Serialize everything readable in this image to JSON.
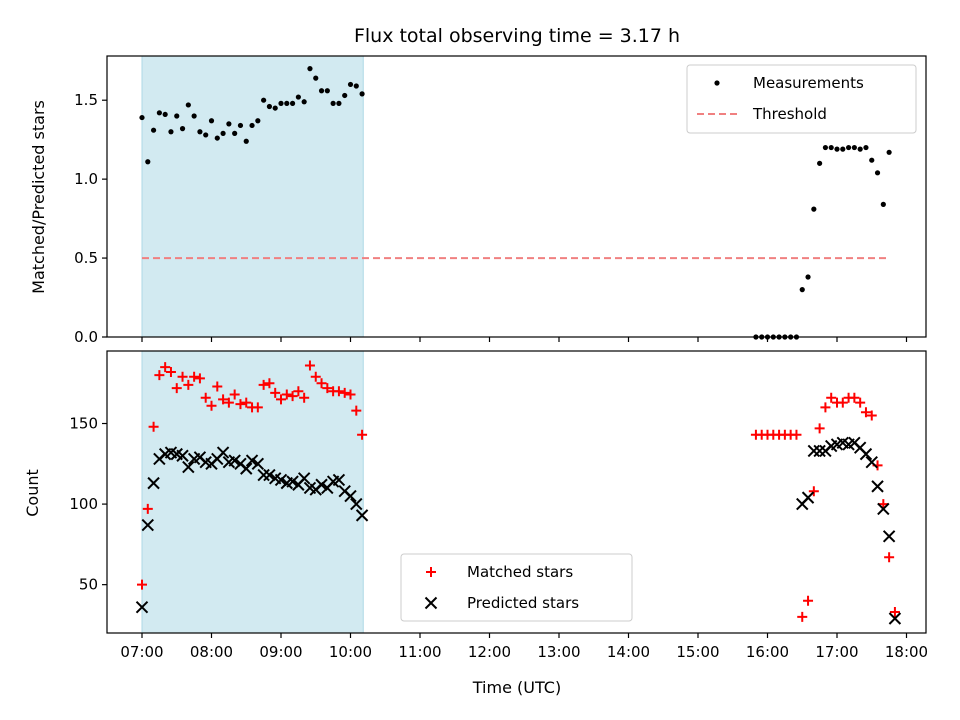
{
  "chart_data": [
    {
      "type": "scatter",
      "title": "Flux total observing time = 3.17 h",
      "xlabel": "",
      "ylabel": "Matched/Predicted stars",
      "ylim": [
        0,
        1.78
      ],
      "xlim": [
        "06:30",
        "18:15"
      ],
      "yticks": [
        0.0,
        0.5,
        1.0,
        1.5
      ],
      "ytick_labels": [
        "0.0",
        "0.5",
        "1.0",
        "1.5"
      ],
      "legend_position": "top-right",
      "observing_window": {
        "start": "07:00",
        "end": "10:11",
        "color": "#add8e6"
      },
      "series": [
        {
          "name": "Measurements",
          "marker": "dot",
          "color": "#000000",
          "points": [
            [
              "07:00",
              1.39
            ],
            [
              "07:05",
              1.11
            ],
            [
              "07:10",
              1.31
            ],
            [
              "07:15",
              1.42
            ],
            [
              "07:20",
              1.41
            ],
            [
              "07:25",
              1.3
            ],
            [
              "07:30",
              1.4
            ],
            [
              "07:35",
              1.32
            ],
            [
              "07:40",
              1.47
            ],
            [
              "07:45",
              1.4
            ],
            [
              "07:50",
              1.3
            ],
            [
              "07:55",
              1.28
            ],
            [
              "08:00",
              1.37
            ],
            [
              "08:05",
              1.26
            ],
            [
              "08:10",
              1.29
            ],
            [
              "08:15",
              1.35
            ],
            [
              "08:20",
              1.29
            ],
            [
              "08:25",
              1.34
            ],
            [
              "08:30",
              1.24
            ],
            [
              "08:35",
              1.34
            ],
            [
              "08:40",
              1.37
            ],
            [
              "08:45",
              1.5
            ],
            [
              "08:50",
              1.46
            ],
            [
              "08:55",
              1.45
            ],
            [
              "09:00",
              1.48
            ],
            [
              "09:05",
              1.48
            ],
            [
              "09:10",
              1.48
            ],
            [
              "09:15",
              1.52
            ],
            [
              "09:20",
              1.49
            ],
            [
              "09:25",
              1.7
            ],
            [
              "09:30",
              1.64
            ],
            [
              "09:35",
              1.56
            ],
            [
              "09:40",
              1.56
            ],
            [
              "09:45",
              1.48
            ],
            [
              "09:50",
              1.48
            ],
            [
              "09:55",
              1.53
            ],
            [
              "10:00",
              1.6
            ],
            [
              "10:05",
              1.59
            ],
            [
              "10:10",
              1.54
            ],
            [
              "15:50",
              0.0
            ],
            [
              "15:55",
              0.0
            ],
            [
              "16:00",
              0.0
            ],
            [
              "16:05",
              0.0
            ],
            [
              "16:10",
              0.0
            ],
            [
              "16:15",
              0.0
            ],
            [
              "16:20",
              0.0
            ],
            [
              "16:25",
              0.0
            ],
            [
              "16:30",
              0.3
            ],
            [
              "16:35",
              0.38
            ],
            [
              "16:40",
              0.81
            ],
            [
              "16:45",
              1.1
            ],
            [
              "16:50",
              1.2
            ],
            [
              "16:55",
              1.2
            ],
            [
              "17:00",
              1.19
            ],
            [
              "17:05",
              1.19
            ],
            [
              "17:10",
              1.2
            ],
            [
              "17:15",
              1.2
            ],
            [
              "17:20",
              1.19
            ],
            [
              "17:25",
              1.2
            ],
            [
              "17:30",
              1.12
            ],
            [
              "17:35",
              1.04
            ],
            [
              "17:40",
              0.84
            ],
            [
              "17:45",
              1.17
            ]
          ]
        },
        {
          "name": "Threshold",
          "marker": "dashed-line",
          "color": "#f08080",
          "points": [
            [
              "07:00",
              0.5
            ],
            [
              "17:45",
              0.5
            ]
          ]
        }
      ]
    },
    {
      "type": "scatter",
      "title": "",
      "xlabel": "Time (UTC)",
      "ylabel": "Count",
      "ylim": [
        20,
        195
      ],
      "xlim": [
        "06:30",
        "18:15"
      ],
      "xticks": [
        "07:00",
        "08:00",
        "09:00",
        "10:00",
        "11:00",
        "12:00",
        "13:00",
        "14:00",
        "15:00",
        "16:00",
        "17:00",
        "18:00"
      ],
      "yticks": [
        50,
        100,
        150
      ],
      "ytick_labels": [
        "50",
        "100",
        "150"
      ],
      "legend_position": "lower-center",
      "observing_window": {
        "start": "07:00",
        "end": "10:11",
        "color": "#add8e6"
      },
      "series": [
        {
          "name": "Matched stars",
          "marker": "plus",
          "color": "#ff0000",
          "points": [
            [
              "07:00",
              50
            ],
            [
              "07:05",
              97
            ],
            [
              "07:10",
              148
            ],
            [
              "07:15",
              180
            ],
            [
              "07:20",
              185
            ],
            [
              "07:25",
              182
            ],
            [
              "07:30",
              172
            ],
            [
              "07:35",
              179
            ],
            [
              "07:40",
              174
            ],
            [
              "07:45",
              179
            ],
            [
              "07:50",
              178
            ],
            [
              "07:55",
              166
            ],
            [
              "08:00",
              161
            ],
            [
              "08:05",
              173
            ],
            [
              "08:10",
              165
            ],
            [
              "08:15",
              163
            ],
            [
              "08:20",
              168
            ],
            [
              "08:25",
              162
            ],
            [
              "08:30",
              163
            ],
            [
              "08:35",
              160
            ],
            [
              "08:40",
              160
            ],
            [
              "08:45",
              174
            ],
            [
              "08:50",
              175
            ],
            [
              "08:55",
              169
            ],
            [
              "09:00",
              165
            ],
            [
              "09:05",
              168
            ],
            [
              "09:10",
              167
            ],
            [
              "09:15",
              170
            ],
            [
              "09:20",
              166
            ],
            [
              "09:25",
              186
            ],
            [
              "09:30",
              179
            ],
            [
              "09:35",
              175
            ],
            [
              "09:40",
              172
            ],
            [
              "09:45",
              170
            ],
            [
              "09:50",
              170
            ],
            [
              "09:55",
              169
            ],
            [
              "10:00",
              168
            ],
            [
              "10:05",
              158
            ],
            [
              "10:10",
              143
            ],
            [
              "15:50",
              143
            ],
            [
              "15:55",
              143
            ],
            [
              "16:00",
              143
            ],
            [
              "16:05",
              143
            ],
            [
              "16:10",
              143
            ],
            [
              "16:15",
              143
            ],
            [
              "16:20",
              143
            ],
            [
              "16:25",
              143
            ],
            [
              "16:30",
              30
            ],
            [
              "16:35",
              40
            ],
            [
              "16:40",
              108
            ],
            [
              "16:45",
              147
            ],
            [
              "16:50",
              160
            ],
            [
              "16:55",
              166
            ],
            [
              "17:00",
              163
            ],
            [
              "17:05",
              163
            ],
            [
              "17:10",
              166
            ],
            [
              "17:15",
              166
            ],
            [
              "17:20",
              163
            ],
            [
              "17:25",
              157
            ],
            [
              "17:30",
              155
            ],
            [
              "17:35",
              124
            ],
            [
              "17:40",
              100
            ],
            [
              "17:45",
              67
            ],
            [
              "17:50",
              33
            ]
          ]
        },
        {
          "name": "Predicted stars",
          "marker": "x",
          "color": "#000000",
          "points": [
            [
              "07:00",
              36
            ],
            [
              "07:05",
              87
            ],
            [
              "07:10",
              113
            ],
            [
              "07:15",
              128
            ],
            [
              "07:20",
              131
            ],
            [
              "07:25",
              132
            ],
            [
              "07:30",
              131
            ],
            [
              "07:35",
              130
            ],
            [
              "07:40",
              123
            ],
            [
              "07:45",
              128
            ],
            [
              "07:50",
              129
            ],
            [
              "07:55",
              126
            ],
            [
              "08:00",
              125
            ],
            [
              "08:05",
              128
            ],
            [
              "08:10",
              132
            ],
            [
              "08:15",
              126
            ],
            [
              "08:20",
              127
            ],
            [
              "08:25",
              125
            ],
            [
              "08:30",
              122
            ],
            [
              "08:35",
              127
            ],
            [
              "08:40",
              125
            ],
            [
              "08:45",
              118
            ],
            [
              "08:50",
              118
            ],
            [
              "08:55",
              116
            ],
            [
              "09:00",
              115
            ],
            [
              "09:05",
              113
            ],
            [
              "09:10",
              114
            ],
            [
              "09:15",
              112
            ],
            [
              "09:20",
              116
            ],
            [
              "09:25",
              110
            ],
            [
              "09:30",
              109
            ],
            [
              "09:35",
              112
            ],
            [
              "09:40",
              110
            ],
            [
              "09:45",
              114
            ],
            [
              "09:50",
              115
            ],
            [
              "09:55",
              108
            ],
            [
              "10:00",
              105
            ],
            [
              "10:05",
              100
            ],
            [
              "10:10",
              93
            ],
            [
              "16:30",
              100
            ],
            [
              "16:35",
              104
            ],
            [
              "16:40",
              133
            ],
            [
              "16:45",
              133
            ],
            [
              "16:50",
              133
            ],
            [
              "16:55",
              136
            ],
            [
              "17:00",
              137
            ],
            [
              "17:05",
              138
            ],
            [
              "17:10",
              137
            ],
            [
              "17:15",
              138
            ],
            [
              "17:20",
              135
            ],
            [
              "17:25",
              131
            ],
            [
              "17:30",
              126
            ],
            [
              "17:35",
              111
            ],
            [
              "17:40",
              97
            ],
            [
              "17:45",
              80
            ],
            [
              "17:50",
              29
            ]
          ]
        }
      ]
    }
  ]
}
